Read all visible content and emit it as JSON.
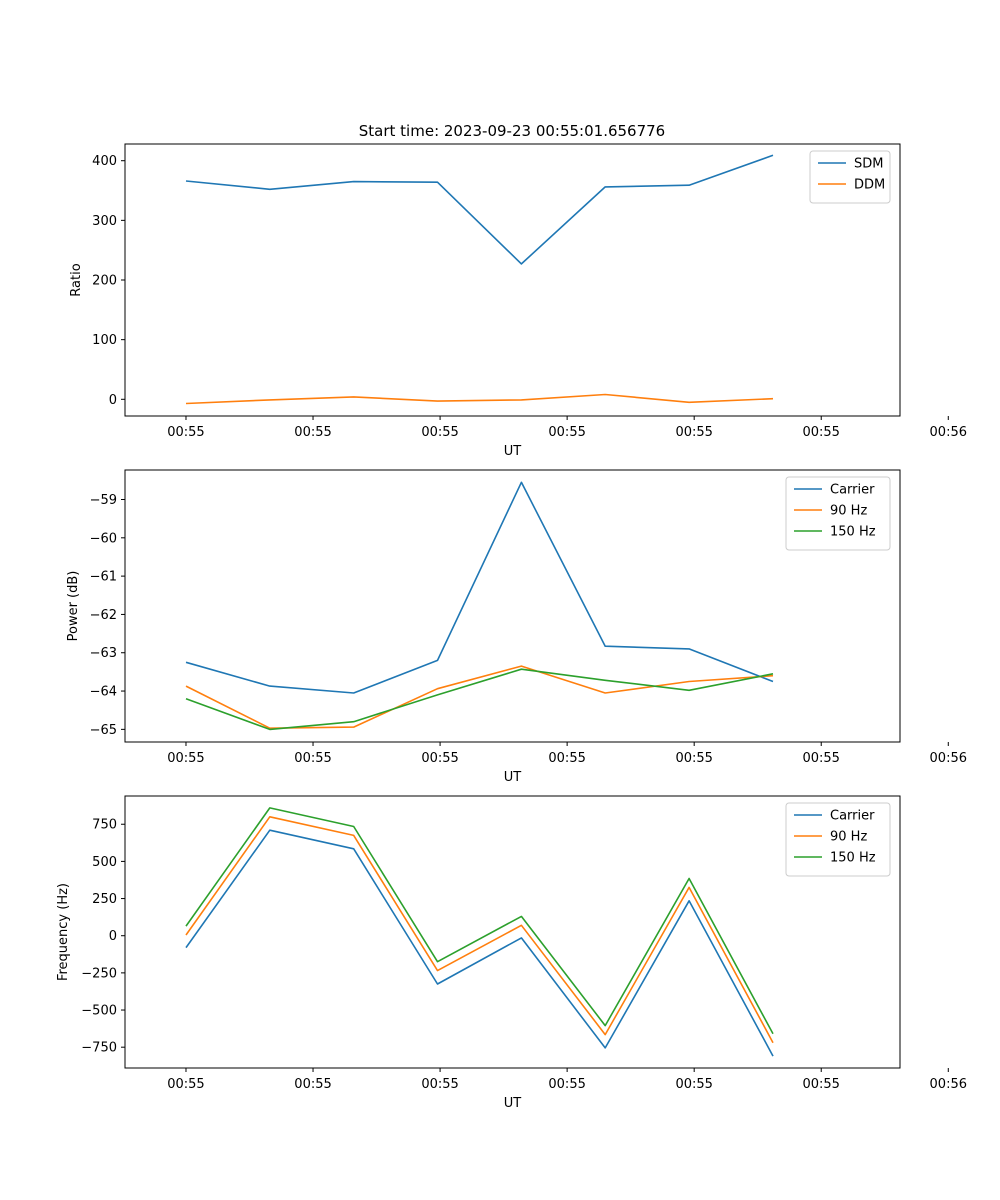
{
  "title": "Start time: 2023-09-23 00:55:01.656776",
  "chart_data": [
    {
      "type": "line",
      "title": "Start time: 2023-09-23 00:55:01.656776",
      "xlabel": "UT",
      "ylabel": "Ratio",
      "x_seconds": [
        0.0,
        0.33,
        0.66,
        0.99,
        1.32,
        1.65,
        1.98,
        2.31
      ],
      "xlim": [
        -0.24,
        2.81
      ],
      "xticks": [
        0,
        0.5,
        1.0,
        1.5,
        2.0,
        2.5,
        3.0
      ],
      "xtick_labels": [
        "00:55",
        "00:55",
        "00:55",
        "00:55",
        "00:55",
        "00:55",
        "00:56"
      ],
      "ylim": [
        -28,
        428
      ],
      "yticks": [
        0,
        100,
        200,
        300,
        400
      ],
      "ytick_labels": [
        "0",
        "100",
        "200",
        "300",
        "400"
      ],
      "legend_position": "top-right",
      "series": [
        {
          "name": "SDM",
          "color": "#1f77b4",
          "values": [
            366,
            352,
            365,
            364,
            227,
            356,
            359,
            409
          ]
        },
        {
          "name": "DDM",
          "color": "#ff7f0e",
          "values": [
            -7,
            -1,
            4,
            -3,
            -1,
            8,
            -5,
            1
          ]
        }
      ]
    },
    {
      "type": "line",
      "title": "",
      "xlabel": "UT",
      "ylabel": "Power (dB)",
      "x_seconds": [
        0.0,
        0.33,
        0.66,
        0.99,
        1.32,
        1.65,
        1.98,
        2.31
      ],
      "xlim": [
        -0.24,
        2.81
      ],
      "xticks": [
        0,
        0.5,
        1.0,
        1.5,
        2.0,
        2.5,
        3.0
      ],
      "xtick_labels": [
        "00:55",
        "00:55",
        "00:55",
        "00:55",
        "00:55",
        "00:55",
        "00:56"
      ],
      "ylim": [
        -65.33,
        -58.23
      ],
      "yticks": [
        -65,
        -64,
        -63,
        -62,
        -61,
        -60,
        -59
      ],
      "ytick_labels": [
        "−65",
        "−64",
        "−63",
        "−62",
        "−61",
        "−60",
        "−59"
      ],
      "legend_position": "top-right",
      "series": [
        {
          "name": "Carrier",
          "color": "#1f77b4",
          "values": [
            -63.25,
            -63.87,
            -64.05,
            -63.2,
            -58.55,
            -62.83,
            -62.9,
            -63.75
          ]
        },
        {
          "name": "90 Hz",
          "color": "#ff7f0e",
          "values": [
            -63.87,
            -64.97,
            -64.94,
            -63.94,
            -63.35,
            -64.05,
            -63.75,
            -63.6
          ]
        },
        {
          "name": "150 Hz",
          "color": "#2ca02c",
          "values": [
            -64.2,
            -65.0,
            -64.8,
            -64.1,
            -63.43,
            -63.72,
            -63.98,
            -63.55
          ]
        }
      ]
    },
    {
      "type": "line",
      "title": "",
      "xlabel": "UT",
      "ylabel": "Frequency (Hz)",
      "x_seconds": [
        0.0,
        0.33,
        0.66,
        0.99,
        1.32,
        1.65,
        1.98,
        2.31
      ],
      "xlim": [
        -0.24,
        2.81
      ],
      "xticks": [
        0,
        0.5,
        1.0,
        1.5,
        2.0,
        2.5,
        3.0
      ],
      "xtick_labels": [
        "00:55",
        "00:55",
        "00:55",
        "00:55",
        "00:55",
        "00:55",
        "00:56"
      ],
      "ylim": [
        -890,
        940
      ],
      "yticks": [
        -750,
        -500,
        -250,
        0,
        250,
        500,
        750
      ],
      "ytick_labels": [
        "−750",
        "−500",
        "−250",
        "0",
        "250",
        "500",
        "750"
      ],
      "legend_position": "top-right",
      "series": [
        {
          "name": "Carrier",
          "color": "#1f77b4",
          "values": [
            -80,
            710,
            585,
            -325,
            -15,
            -755,
            235,
            -810
          ]
        },
        {
          "name": "90 Hz",
          "color": "#ff7f0e",
          "values": [
            5,
            800,
            675,
            -235,
            70,
            -665,
            325,
            -720
          ]
        },
        {
          "name": "150 Hz",
          "color": "#2ca02c",
          "values": [
            65,
            860,
            735,
            -175,
            130,
            -605,
            385,
            -660
          ]
        }
      ]
    }
  ]
}
